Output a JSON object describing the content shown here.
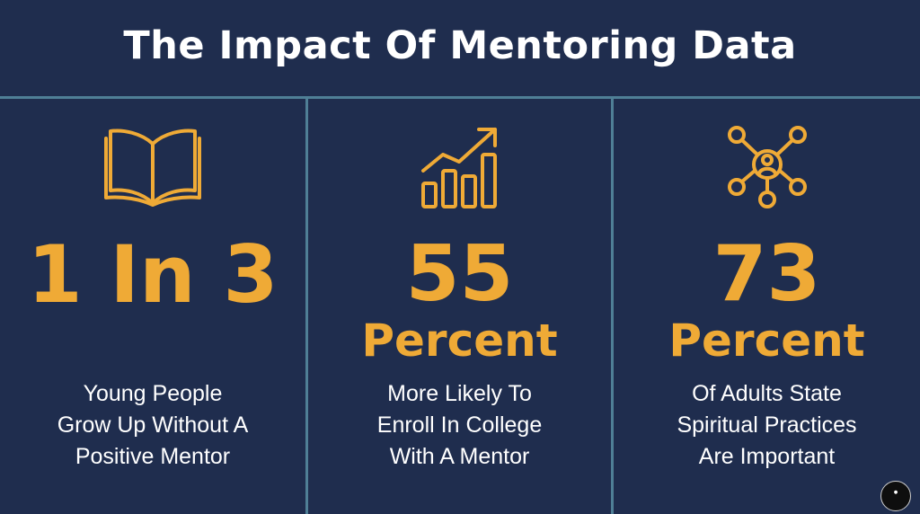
{
  "title": "The Impact Of Mentoring Data",
  "colors": {
    "background": "#1f2d4e",
    "accent": "#efaa36",
    "divider": "#4f7f96",
    "text": "#ffffff"
  },
  "stats": [
    {
      "icon": "open-book-icon",
      "figure": "1 In 3",
      "unit": "",
      "lines": [
        "Young People",
        "Grow Up Without A",
        "Positive Mentor"
      ]
    },
    {
      "icon": "bar-chart-growth-icon",
      "figure": "55",
      "unit": "Percent",
      "lines": [
        "More Likely To",
        "Enroll In College",
        "With A Mentor"
      ]
    },
    {
      "icon": "person-network-icon",
      "figure": "73",
      "unit": "Percent",
      "lines": [
        "Of Adults State",
        "Spiritual Practices",
        "Are Important"
      ]
    }
  ]
}
